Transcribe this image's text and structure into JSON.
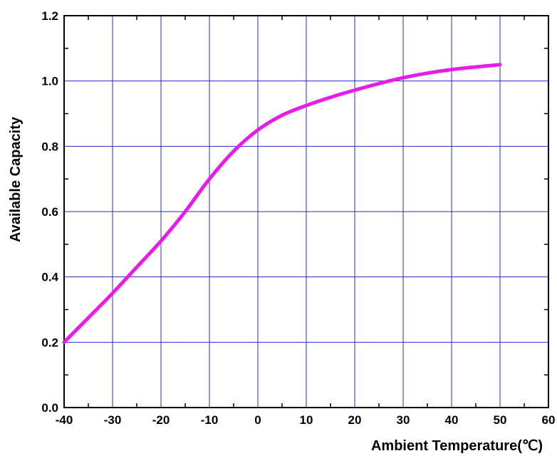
{
  "chart_data": {
    "type": "line",
    "title": "",
    "xlabel": "Ambient Temperature(℃)",
    "ylabel": "Available Capacity",
    "xlim": [
      -40,
      60
    ],
    "ylim": [
      0,
      1.2
    ],
    "x_ticks": [
      "-40",
      "-30",
      "-20",
      "-10",
      "0",
      "10",
      "20",
      "30",
      "40",
      "50",
      "60"
    ],
    "y_ticks": [
      "0.0",
      "0.2",
      "0.4",
      "0.6",
      "0.8",
      "1.0",
      "1.2"
    ],
    "grid": true,
    "colors": {
      "line": "#e81ce8",
      "grid": "#2a2ad0",
      "axis": "#000000"
    },
    "series": [
      {
        "x": [
          -40,
          -35,
          -30,
          -25,
          -20,
          -15,
          -10,
          -5,
          0,
          5,
          10,
          15,
          20,
          25,
          30,
          35,
          40,
          45,
          50
        ],
        "y": [
          0.2,
          0.275,
          0.35,
          0.43,
          0.51,
          0.6,
          0.7,
          0.785,
          0.85,
          0.895,
          0.925,
          0.95,
          0.972,
          0.992,
          1.01,
          1.024,
          1.035,
          1.043,
          1.05
        ]
      }
    ]
  }
}
